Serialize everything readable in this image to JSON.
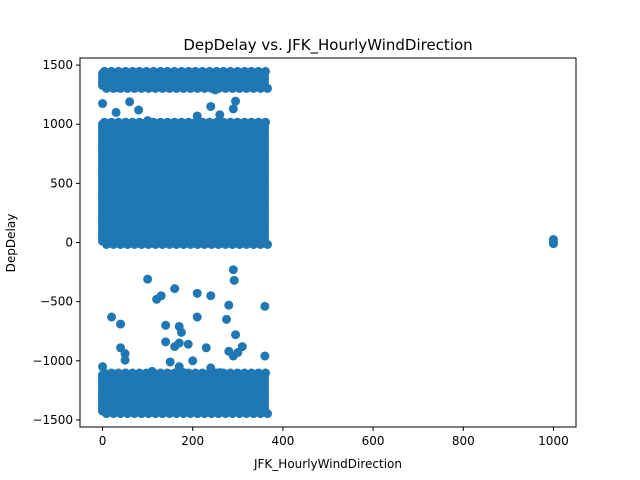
{
  "chart_data": {
    "type": "scatter",
    "title": "DepDelay vs. JFK_HourlyWindDirection",
    "xlabel": "JFK_HourlyWindDirection",
    "ylabel": "DepDelay",
    "xlim": [
      -50,
      1050
    ],
    "ylim": [
      -1560,
      1560
    ],
    "x_ticks": [
      0,
      200,
      400,
      600,
      800,
      1000
    ],
    "y_ticks": [
      -1500,
      -1000,
      -500,
      0,
      500,
      1000,
      1500
    ],
    "marker_color": "#1f77b4",
    "grid": false,
    "legend": "none",
    "dense_regions": [
      {
        "x_range": [
          0,
          360
        ],
        "y_range": [
          1320,
          1430
        ]
      },
      {
        "x_range": [
          0,
          360
        ],
        "y_range": [
          0,
          1000
        ]
      },
      {
        "x_range": [
          0,
          360
        ],
        "y_range": [
          -1430,
          -1120
        ]
      }
    ],
    "points": [
      [
        0,
        1175
      ],
      [
        30,
        1100
      ],
      [
        60,
        1190
      ],
      [
        80,
        1120
      ],
      [
        100,
        1030
      ],
      [
        210,
        1070
      ],
      [
        240,
        1150
      ],
      [
        260,
        1080
      ],
      [
        290,
        1130
      ],
      [
        295,
        1195
      ],
      [
        100,
        1420
      ],
      [
        150,
        1400
      ],
      [
        200,
        1340
      ],
      [
        250,
        1290
      ],
      [
        30,
        1310
      ],
      [
        100,
        -310
      ],
      [
        120,
        -480
      ],
      [
        130,
        -450
      ],
      [
        160,
        -390
      ],
      [
        210,
        -430
      ],
      [
        240,
        -450
      ],
      [
        280,
        -530
      ],
      [
        290,
        -230
      ],
      [
        292,
        -320
      ],
      [
        360,
        -540
      ],
      [
        20,
        -630
      ],
      [
        40,
        -690
      ],
      [
        140,
        -700
      ],
      [
        170,
        -710
      ],
      [
        175,
        -760
      ],
      [
        210,
        -630
      ],
      [
        275,
        -650
      ],
      [
        295,
        -780
      ],
      [
        40,
        -890
      ],
      [
        50,
        -940
      ],
      [
        50,
        -995
      ],
      [
        140,
        -840
      ],
      [
        160,
        -880
      ],
      [
        170,
        -850
      ],
      [
        190,
        -860
      ],
      [
        230,
        -890
      ],
      [
        280,
        -920
      ],
      [
        290,
        -960
      ],
      [
        300,
        -930
      ],
      [
        310,
        -880
      ],
      [
        360,
        -960
      ],
      [
        0,
        -1050
      ],
      [
        110,
        -1090
      ],
      [
        150,
        -1010
      ],
      [
        170,
        -1050
      ],
      [
        180,
        -1100
      ],
      [
        200,
        -1000
      ],
      [
        240,
        -1060
      ],
      [
        260,
        -1100
      ],
      [
        1000,
        25
      ],
      [
        1000,
        0
      ],
      [
        1000,
        -10
      ]
    ]
  }
}
